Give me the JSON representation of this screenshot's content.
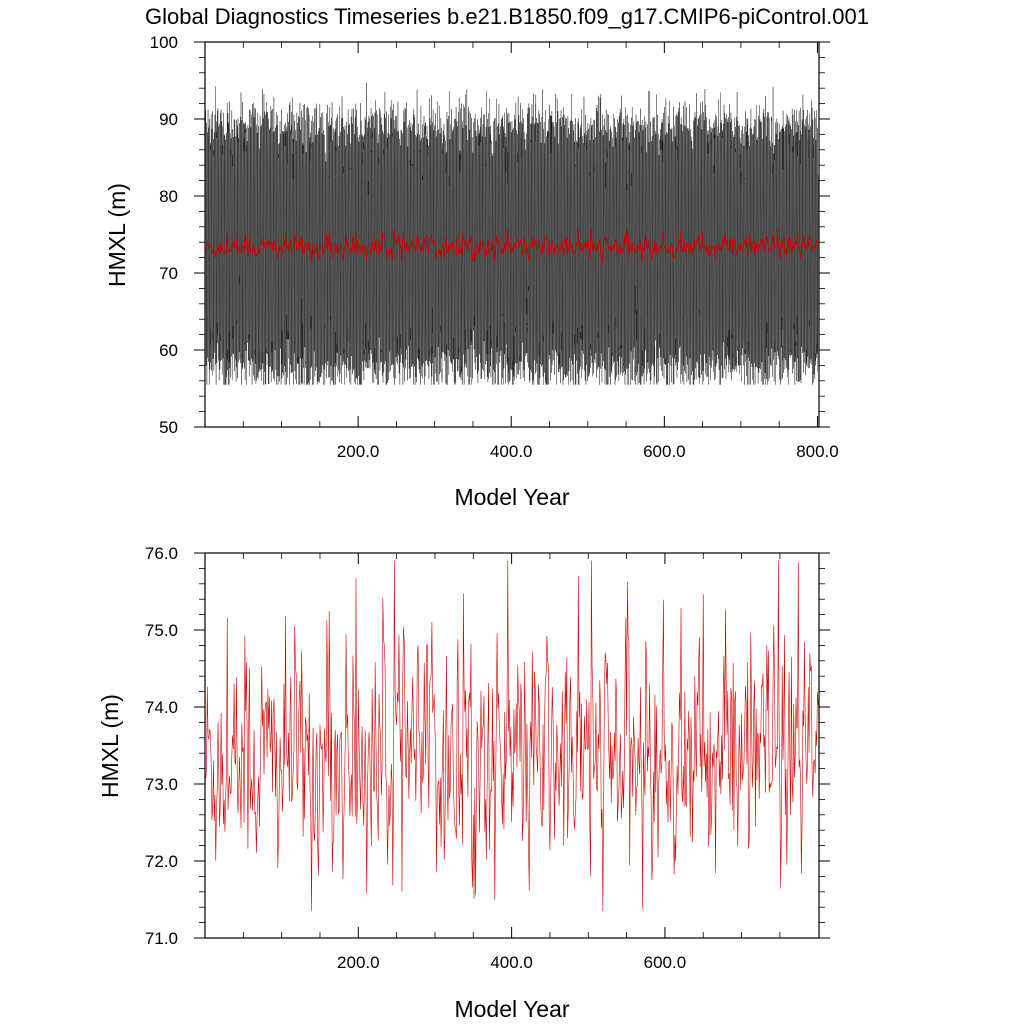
{
  "figure": {
    "title": "Global Diagnostics Timeseries b.e21.B1850.f09_g17.CMIP6-piControl.001"
  },
  "colors": {
    "monthly_series": "#000000",
    "annual_series": "#d40000",
    "background": "#ffffff"
  },
  "chart_data": [
    {
      "type": "line",
      "name": "top-panel",
      "title": "Global Diagnostics Timeseries b.e21.B1850.f09_g17.CMIP6-piControl.001",
      "xlabel": "Model Year",
      "ylabel": "HMXL (m)",
      "xlim": [
        0,
        802
      ],
      "ylim": [
        50,
        100
      ],
      "xticks": [
        200.0,
        400.0,
        600.0,
        800.0
      ],
      "xtick_labels": [
        "200.0",
        "400.0",
        "600.0",
        "800.0"
      ],
      "yticks": [
        50,
        60,
        70,
        80,
        90,
        100
      ],
      "ytick_labels": [
        "50",
        "60",
        "70",
        "80",
        "90",
        "100"
      ],
      "grid": false,
      "series": [
        {
          "color": "#000000",
          "description_of_data": "monthly values, strong seasonal cycle",
          "x_range": [
            1,
            800
          ],
          "typical_max": 91,
          "typical_min": 60,
          "extreme_max": 97.5,
          "extreme_min": 55.5,
          "mean": 73.3
        },
        {
          "color": "#d40000",
          "description_of_data": "annual mean",
          "x_range": [
            1,
            800
          ],
          "mean": 73.3,
          "spread": 0.9
        }
      ]
    },
    {
      "type": "line",
      "name": "bottom-panel",
      "xlabel": "Model Year",
      "ylabel": "HMXL (m)",
      "xlim": [
        0,
        801
      ],
      "ylim": [
        71.0,
        76.0
      ],
      "xticks": [
        200.0,
        400.0,
        600.0
      ],
      "xtick_labels": [
        "200.0",
        "400.0",
        "600.0"
      ],
      "yticks": [
        71.0,
        72.0,
        73.0,
        74.0,
        75.0,
        76.0
      ],
      "ytick_labels": [
        "71.0",
        "72.0",
        "73.0",
        "74.0",
        "75.0",
        "76.0"
      ],
      "grid": false,
      "series": [
        {
          "color": "#d40000",
          "description_of_data": "annual mean",
          "x_range": [
            1,
            800
          ],
          "mean": 73.3,
          "max": 75.9,
          "min": 71.35
        }
      ]
    }
  ]
}
